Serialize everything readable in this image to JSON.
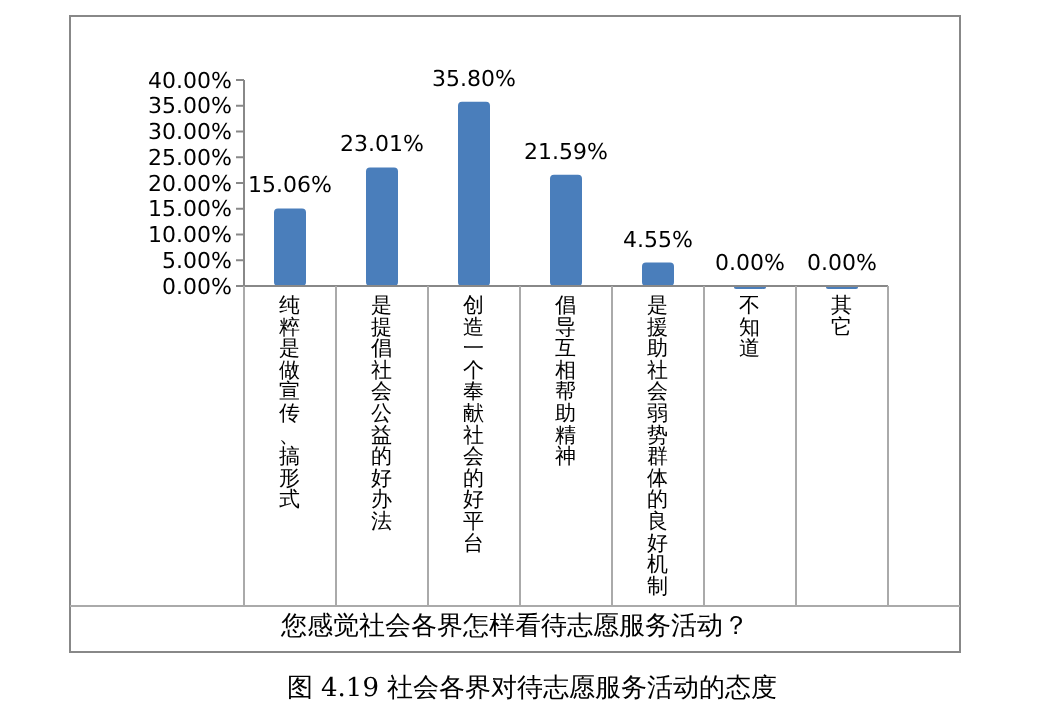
{
  "chart_data": {
    "type": "bar",
    "categories": [
      "纯粹是做宣传、搞形式",
      "是提倡社会公益的好办法",
      "创造一个奉献社会的好平台",
      "倡导互相帮助精神",
      "是援助社会弱势群体的良好机制",
      "不知道",
      "其它"
    ],
    "values": [
      15.06,
      23.01,
      35.8,
      21.59,
      4.55,
      0,
      0
    ],
    "value_labels": [
      "15.06%",
      "23.01%",
      "35.80%",
      "21.59%",
      "4.55%",
      "0.00%",
      "0.00%"
    ],
    "color": "#4a7ebb",
    "ylim": [
      0,
      40
    ],
    "yticks": [
      {
        "value": 0,
        "label": "0.00%"
      },
      {
        "value": 5,
        "label": "5.00%"
      },
      {
        "value": 10,
        "label": "10.00%"
      },
      {
        "value": 15,
        "label": "15.00%"
      },
      {
        "value": 20,
        "label": "20.00%"
      },
      {
        "value": 25,
        "label": "25.00%"
      },
      {
        "value": 30,
        "label": "30.00%"
      },
      {
        "value": 35,
        "label": "35.00%"
      },
      {
        "value": 40,
        "label": "40.00%"
      }
    ],
    "grid": false,
    "annotations": [
      "您感觉社会各界怎样看待志愿服务活动？",
      "图 4.19 社会各界对待志愿服务活动的态度"
    ]
  }
}
